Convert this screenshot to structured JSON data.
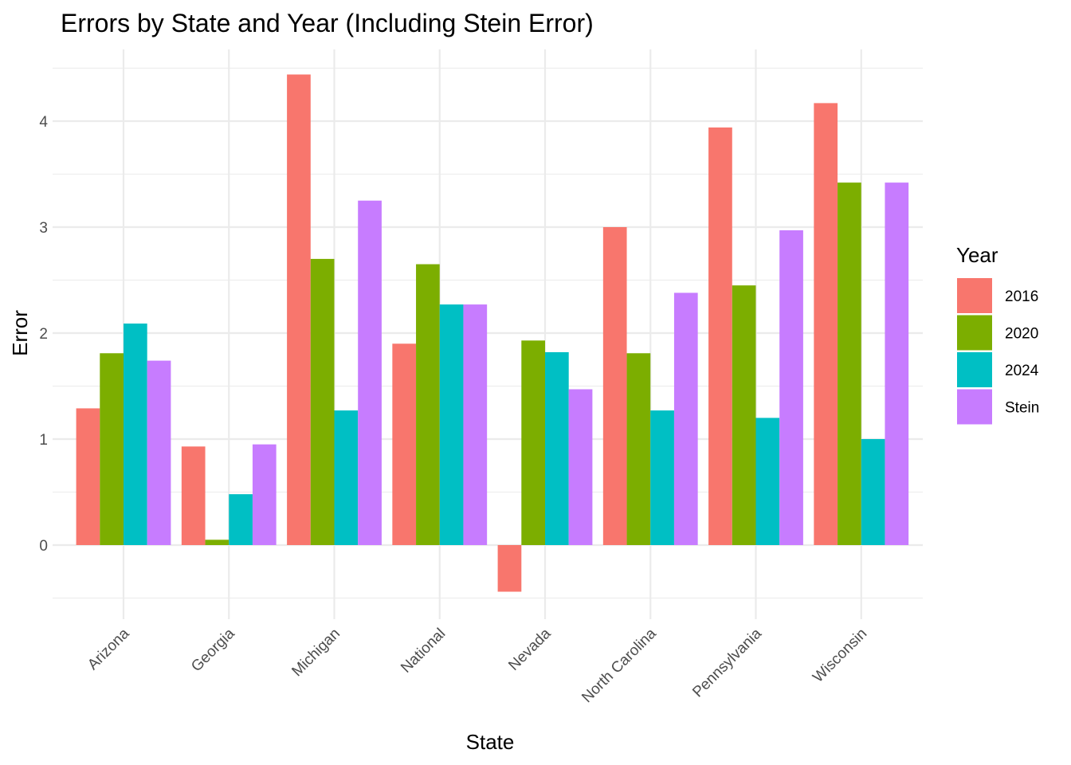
{
  "chart_data": {
    "type": "bar",
    "title": "Errors by State and Year (Including Stein Error)",
    "xlabel": "State",
    "ylabel": "Error",
    "legend_title": "Year",
    "legend_position": "right",
    "grid": true,
    "ylim": [
      -0.5,
      4.5
    ],
    "yticks": [
      0,
      1,
      2,
      3,
      4
    ],
    "categories": [
      "Arizona",
      "Georgia",
      "Michigan",
      "National",
      "Nevada",
      "North Carolina",
      "Pennsylvania",
      "Wisconsin"
    ],
    "series": [
      {
        "name": "2016",
        "color": "#F8766D",
        "values": [
          1.29,
          0.93,
          4.44,
          1.9,
          -0.44,
          3.0,
          3.94,
          4.17
        ]
      },
      {
        "name": "2020",
        "color": "#7CAE00",
        "values": [
          1.81,
          0.05,
          2.7,
          2.65,
          1.93,
          1.81,
          2.45,
          3.42
        ]
      },
      {
        "name": "2024",
        "color": "#00BFC4",
        "values": [
          2.09,
          0.48,
          1.27,
          2.27,
          1.82,
          1.27,
          1.2,
          1.0
        ]
      },
      {
        "name": "Stein",
        "color": "#C77CFF",
        "values": [
          1.74,
          0.95,
          3.25,
          2.27,
          1.47,
          2.38,
          2.97,
          3.42
        ]
      }
    ]
  }
}
